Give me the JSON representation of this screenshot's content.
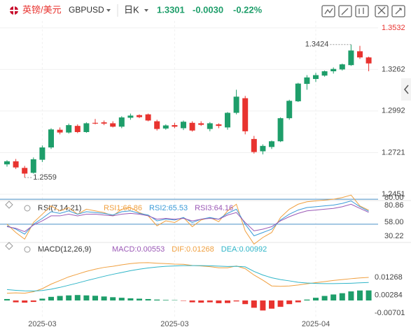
{
  "header": {
    "name": "英镑/美元",
    "symbol": "GBPUSD",
    "period": "日K",
    "price": "1.3301",
    "change": "-0.0030",
    "change_pct": "-0.22%"
  },
  "chart_data": {
    "type": "candlestick",
    "categories": [
      null,
      null,
      null,
      null,
      "2025-03",
      null,
      null,
      null,
      null,
      null,
      null,
      null,
      null,
      null,
      null,
      null,
      null,
      null,
      null,
      "2025-03",
      null,
      null,
      null,
      null,
      null,
      null,
      null,
      null,
      null,
      null,
      null,
      null,
      null,
      null,
      null,
      "2025-04",
      null,
      null,
      null,
      null,
      null,
      null
    ],
    "open": [
      1.2645,
      1.2665,
      1.2622,
      1.259,
      1.2675,
      1.2755,
      1.287,
      1.2852,
      1.2895,
      1.2855,
      1.2915,
      1.2918,
      1.2912,
      1.289,
      1.2948,
      1.2965,
      1.297,
      1.2925,
      1.2878,
      1.29,
      1.288,
      1.2915,
      1.2912,
      1.2875,
      1.2905,
      1.2885,
      1.298,
      1.3075,
      1.281,
      1.273,
      1.2758,
      1.2795,
      1.2945,
      1.3055,
      1.3168,
      1.32,
      1.3222,
      1.325,
      1.3262,
      1.329,
      1.338,
      1.334
    ],
    "high": [
      1.2672,
      1.268,
      1.2635,
      1.269,
      1.2768,
      1.288,
      1.2885,
      1.291,
      1.2905,
      1.2918,
      1.294,
      1.293,
      1.2925,
      1.2958,
      1.2975,
      1.297,
      1.2975,
      1.2935,
      1.2905,
      1.2915,
      1.293,
      1.2925,
      1.2925,
      1.292,
      1.2912,
      1.2985,
      1.313,
      1.309,
      1.283,
      1.2775,
      1.28,
      1.295,
      1.3065,
      1.3175,
      1.3225,
      1.324,
      1.3255,
      1.3275,
      1.33,
      1.3424,
      1.3415,
      1.3345
    ],
    "low": [
      1.263,
      1.2615,
      1.2559,
      1.2585,
      1.266,
      1.2745,
      1.284,
      1.2845,
      1.2848,
      1.285,
      1.2905,
      1.29,
      1.2885,
      1.288,
      1.2935,
      1.2945,
      1.2925,
      1.2865,
      1.287,
      1.288,
      1.2868,
      1.2858,
      1.2895,
      1.286,
      1.288,
      1.287,
      1.297,
      1.284,
      1.2715,
      1.271,
      1.2745,
      1.279,
      1.2935,
      1.305,
      1.313,
      1.318,
      1.3215,
      1.3235,
      1.3255,
      1.3285,
      1.333,
      1.325
    ],
    "close": [
      1.2665,
      1.2625,
      1.2585,
      1.2678,
      1.2755,
      1.2872,
      1.2852,
      1.29,
      1.2855,
      1.2912,
      1.291,
      1.291,
      1.289,
      1.295,
      1.2962,
      1.2952,
      1.293,
      1.2875,
      1.2898,
      1.289,
      1.2922,
      1.2865,
      1.2902,
      1.2912,
      1.2895,
      1.298,
      1.3085,
      1.286,
      1.2725,
      1.2765,
      1.2795,
      1.2945,
      1.3058,
      1.317,
      1.321,
      1.3225,
      1.325,
      1.3265,
      1.3295,
      1.3385,
      1.334,
      1.3301
    ],
    "up_color": "#1e9e6a",
    "down_color": "#e8332f",
    "ylim": [
      1.2419,
      1.3577
    ],
    "yticks": [
      1.2451,
      1.2721,
      1.2992,
      1.3262,
      1.3532
    ],
    "high_label": "1.3424",
    "low_label": "1.2559",
    "rsi": {
      "title": "RSI(7,14,21)",
      "ylim": [
        28,
        86
      ],
      "lines": [
        80,
        50
      ],
      "axis_labels": [
        "80.00",
        "80.86",
        "58.00",
        "30.22"
      ],
      "series": [
        {
          "name": "RSI1:66.86",
          "color": "#f0a040",
          "values": [
            50,
            40,
            32,
            52,
            62,
            72,
            66,
            70,
            62,
            68,
            66,
            64,
            60,
            68,
            70,
            64,
            60,
            48,
            54,
            52,
            58,
            47,
            55,
            58,
            53,
            66,
            74,
            42,
            26,
            34,
            40,
            58,
            68,
            74,
            77,
            78,
            79,
            80,
            82,
            85,
            72,
            66.86
          ]
        },
        {
          "name": "RSI2:65.53",
          "color": "#3a9bd8",
          "values": [
            48,
            44,
            38,
            50,
            57,
            65,
            63,
            66,
            62,
            65,
            64,
            63,
            61,
            65,
            66,
            63,
            61,
            54,
            56,
            55,
            58,
            52,
            56,
            58,
            56,
            63,
            68,
            50,
            36,
            40,
            44,
            55,
            62,
            67,
            70,
            71,
            72,
            73,
            75,
            78,
            71,
            65.53
          ]
        },
        {
          "name": "RSI3:64.16",
          "color": "#9b59b6",
          "values": [
            47,
            45,
            41,
            49,
            54,
            60,
            60,
            62,
            60,
            62,
            62,
            61,
            60,
            62,
            63,
            62,
            60,
            56,
            57,
            56,
            57,
            54,
            56,
            57,
            56,
            61,
            64,
            52,
            42,
            44,
            47,
            54,
            59,
            63,
            66,
            67,
            68,
            69,
            71,
            74,
            69,
            64.16
          ]
        }
      ]
    },
    "macd": {
      "title": "MACD(12,26,9)",
      "ylim": [
        -0.0096,
        0.025
      ],
      "yticks": [
        0.01268,
        0.00284,
        -0.00701
      ],
      "hist": {
        "name": "MACD:0.00553",
        "color": "#9b59b6",
        "values": [
          0.0008,
          -0.001,
          -0.0012,
          -0.0008,
          0.001,
          0.002,
          0.0025,
          0.0028,
          0.003,
          0.0028,
          0.0026,
          0.0022,
          0.0018,
          0.0015,
          0.0012,
          0.001,
          0.0008,
          0.0005,
          0.0003,
          0.0002,
          -0.0002,
          -0.001,
          -0.0012,
          -0.001,
          -0.0015,
          -0.0014,
          -0.0005,
          -0.002,
          -0.004,
          -0.0055,
          -0.0045,
          -0.0035,
          -0.002,
          -0.001,
          0.0005,
          0.0015,
          0.0025,
          0.0033,
          0.004,
          0.005,
          0.0055,
          0.00553
        ]
      },
      "series": [
        {
          "name": "DIF:0.01268",
          "color": "#f0a040",
          "values": [
            0.004,
            0.0042,
            0.004,
            0.0048,
            0.0065,
            0.009,
            0.011,
            0.013,
            0.0145,
            0.016,
            0.0172,
            0.0182,
            0.0188,
            0.0196,
            0.0203,
            0.0207,
            0.0208,
            0.0205,
            0.0203,
            0.02,
            0.0199,
            0.0193,
            0.019,
            0.0186,
            0.018,
            0.018,
            0.019,
            0.0175,
            0.014,
            0.0112,
            0.008,
            0.0078,
            0.008,
            0.0085,
            0.0092,
            0.0098,
            0.0104,
            0.011,
            0.0115,
            0.012,
            0.0124,
            0.01268
          ]
        },
        {
          "name": "DEA:0.00992",
          "color": "#2fb5c8",
          "values": [
            0.006,
            0.0056,
            0.0053,
            0.0052,
            0.0055,
            0.0062,
            0.0072,
            0.0084,
            0.0096,
            0.0109,
            0.0121,
            0.0133,
            0.0144,
            0.0154,
            0.0164,
            0.0172,
            0.0179,
            0.0184,
            0.0188,
            0.019,
            0.0192,
            0.0192,
            0.0192,
            0.0191,
            0.0189,
            0.0187,
            0.0188,
            0.0185,
            0.016,
            0.014,
            0.0125,
            0.0115,
            0.0108,
            0.01,
            0.0096,
            0.0094,
            0.0093,
            0.0093,
            0.0094,
            0.0095,
            0.0097,
            0.00992
          ]
        }
      ]
    }
  }
}
